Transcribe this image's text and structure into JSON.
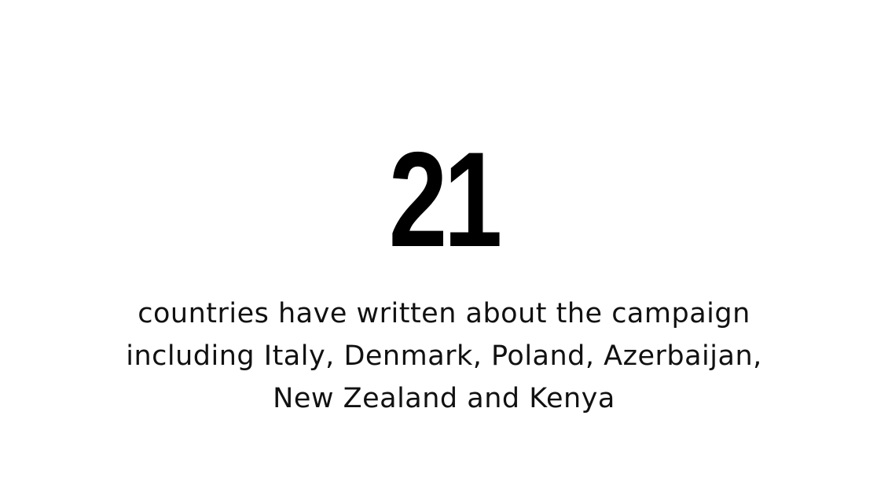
{
  "stat": {
    "number": "21",
    "caption_lines": [
      "countries have written about the campaign",
      "including Italy, Denmark, Poland, Azerbaijan,",
      "New Zealand and Kenya"
    ]
  },
  "colors": {
    "background": "#ffffff",
    "text": "#000000"
  }
}
